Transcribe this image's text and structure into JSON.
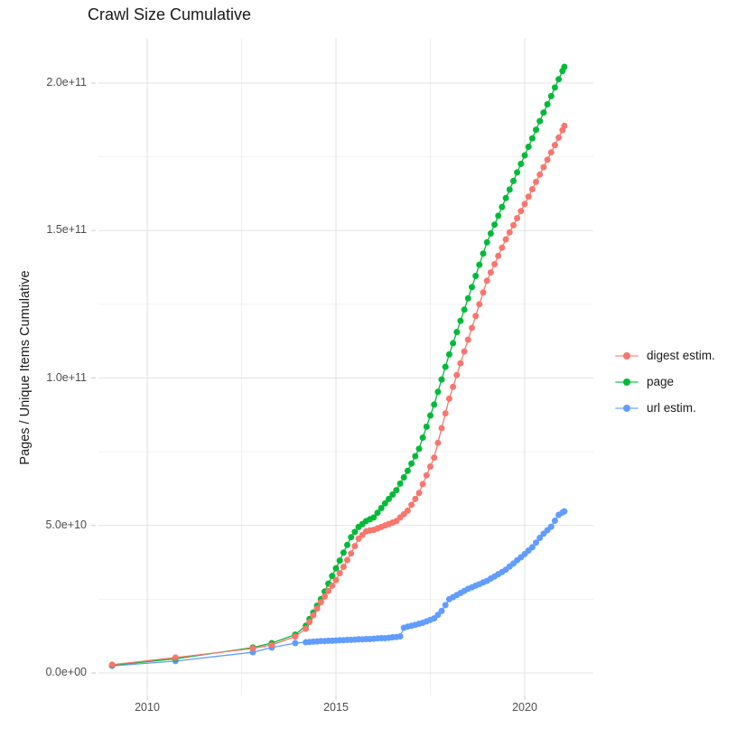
{
  "title": "Crawl Size Cumulative",
  "y_axis": {
    "label": "Pages / Unique Items Cumulative",
    "tick_labels": [
      "0.0e+00",
      "5.0e+10",
      "1.0e+11",
      "1.5e+11",
      "2.0e+11"
    ],
    "tick_values_e9": [
      0,
      50,
      100,
      150,
      200
    ],
    "minor_values_e9": [
      25,
      75,
      125,
      175
    ]
  },
  "x_axis": {
    "tick_labels": [
      "2010",
      "2015",
      "2020"
    ],
    "tick_values": [
      2010,
      2015,
      2020
    ],
    "minor_values": [
      2012.5,
      2017.5
    ]
  },
  "legend": {
    "items": [
      {
        "label": "digest estim.",
        "color": "#F8766D"
      },
      {
        "label": "page",
        "color": "#00BA38"
      },
      {
        "label": "url estim.",
        "color": "#619CFF"
      }
    ]
  },
  "colors": {
    "grid_major": "#e3e3e3",
    "grid_minor": "#ededed",
    "tick": "#d5d5d5",
    "axis_text": "#4d4d4d",
    "title_text": "#1a1a1a"
  },
  "chart_data": {
    "type": "scatter",
    "title": "Crawl Size Cumulative",
    "xlabel": "",
    "ylabel": "Pages / Unique Items Cumulative",
    "value_unit": "1e9 (billions of pages / unique items)",
    "x_range": [
      2008.8,
      2021.3
    ],
    "y_range_e9": [
      0,
      215
    ],
    "grid": true,
    "legend_position": "right",
    "series": [
      {
        "name": "digest estim.",
        "color": "#F8766D",
        "points": [
          [
            2009.07,
            2.8
          ],
          [
            2010.75,
            5.2
          ],
          [
            2012.8,
            8.3
          ],
          [
            2013.3,
            9.5
          ],
          [
            2013.92,
            12.3
          ],
          [
            2014.2,
            15
          ],
          [
            2014.3,
            17.3
          ],
          [
            2014.4,
            19.5
          ],
          [
            2014.5,
            21.8
          ],
          [
            2014.6,
            24
          ],
          [
            2014.7,
            25.9
          ],
          [
            2014.8,
            27.8
          ],
          [
            2014.9,
            29.6
          ],
          [
            2015.0,
            31.5
          ],
          [
            2015.1,
            33.8
          ],
          [
            2015.2,
            36
          ],
          [
            2015.3,
            38.3
          ],
          [
            2015.4,
            40.5
          ],
          [
            2015.5,
            43
          ],
          [
            2015.6,
            45.5
          ],
          [
            2015.7,
            46.8
          ],
          [
            2015.8,
            48
          ],
          [
            2015.9,
            48.3
          ],
          [
            2016.0,
            48.5
          ],
          [
            2016.1,
            49
          ],
          [
            2016.2,
            49.5
          ],
          [
            2016.3,
            50
          ],
          [
            2016.4,
            50.5
          ],
          [
            2016.5,
            51
          ],
          [
            2016.6,
            51.5
          ],
          [
            2016.7,
            52.7
          ],
          [
            2016.8,
            53.8
          ],
          [
            2016.9,
            55
          ],
          [
            2017.0,
            57
          ],
          [
            2017.1,
            59
          ],
          [
            2017.2,
            61
          ],
          [
            2017.3,
            64
          ],
          [
            2017.4,
            67
          ],
          [
            2017.5,
            70
          ],
          [
            2017.6,
            73
          ],
          [
            2017.7,
            78
          ],
          [
            2017.8,
            83
          ],
          [
            2017.9,
            88
          ],
          [
            2018.0,
            93
          ],
          [
            2018.1,
            97
          ],
          [
            2018.2,
            101
          ],
          [
            2018.3,
            105
          ],
          [
            2018.4,
            109
          ],
          [
            2018.5,
            113
          ],
          [
            2018.6,
            117
          ],
          [
            2018.7,
            121
          ],
          [
            2018.8,
            125
          ],
          [
            2018.9,
            129
          ],
          [
            2019.0,
            133
          ],
          [
            2019.1,
            135.8
          ],
          [
            2019.2,
            138.6
          ],
          [
            2019.3,
            141.4
          ],
          [
            2019.4,
            144.2
          ],
          [
            2019.5,
            147
          ],
          [
            2019.6,
            149.4
          ],
          [
            2019.7,
            151.8
          ],
          [
            2019.8,
            154.2
          ],
          [
            2019.9,
            156.6
          ],
          [
            2020.0,
            159
          ],
          [
            2020.1,
            161.5
          ],
          [
            2020.2,
            164
          ],
          [
            2020.3,
            166.5
          ],
          [
            2020.4,
            169
          ],
          [
            2020.5,
            171.5
          ],
          [
            2020.6,
            174
          ],
          [
            2020.7,
            176.5
          ],
          [
            2020.8,
            179
          ],
          [
            2020.9,
            181.5
          ],
          [
            2021.0,
            184
          ],
          [
            2021.05,
            185.5
          ]
        ]
      },
      {
        "name": "page",
        "color": "#00BA38",
        "points": [
          [
            2009.07,
            2.6
          ],
          [
            2010.75,
            4.8
          ],
          [
            2012.8,
            8.6
          ],
          [
            2013.3,
            10.1
          ],
          [
            2013.92,
            13
          ],
          [
            2014.2,
            16
          ],
          [
            2014.3,
            18.3
          ],
          [
            2014.4,
            20.5
          ],
          [
            2014.5,
            22.8
          ],
          [
            2014.6,
            25
          ],
          [
            2014.7,
            27.6
          ],
          [
            2014.8,
            30.3
          ],
          [
            2014.9,
            32.9
          ],
          [
            2015.0,
            35.5
          ],
          [
            2015.1,
            38.1
          ],
          [
            2015.2,
            40.8
          ],
          [
            2015.3,
            43.4
          ],
          [
            2015.4,
            46
          ],
          [
            2015.5,
            47.8
          ],
          [
            2015.6,
            49.5
          ],
          [
            2015.7,
            50.5
          ],
          [
            2015.8,
            51.5
          ],
          [
            2015.9,
            52.1
          ],
          [
            2016.0,
            52.7
          ],
          [
            2016.1,
            54.3
          ],
          [
            2016.2,
            55.9
          ],
          [
            2016.3,
            57.5
          ],
          [
            2016.4,
            59
          ],
          [
            2016.5,
            60.5
          ],
          [
            2016.6,
            62
          ],
          [
            2016.7,
            64.2
          ],
          [
            2016.8,
            66.3
          ],
          [
            2016.9,
            68.5
          ],
          [
            2017.0,
            71
          ],
          [
            2017.1,
            73.5
          ],
          [
            2017.2,
            76
          ],
          [
            2017.3,
            79.8
          ],
          [
            2017.4,
            83.5
          ],
          [
            2017.5,
            87.3
          ],
          [
            2017.6,
            91
          ],
          [
            2017.7,
            95.3
          ],
          [
            2017.8,
            99.5
          ],
          [
            2017.9,
            103.8
          ],
          [
            2018.0,
            108
          ],
          [
            2018.1,
            111.8
          ],
          [
            2018.2,
            115.6
          ],
          [
            2018.3,
            119.4
          ],
          [
            2018.4,
            123.2
          ],
          [
            2018.5,
            127
          ],
          [
            2018.6,
            130.8
          ],
          [
            2018.7,
            134.6
          ],
          [
            2018.8,
            138.4
          ],
          [
            2018.9,
            142.2
          ],
          [
            2019.0,
            146
          ],
          [
            2019.1,
            149
          ],
          [
            2019.2,
            152
          ],
          [
            2019.3,
            155
          ],
          [
            2019.4,
            158
          ],
          [
            2019.5,
            161
          ],
          [
            2019.6,
            163.9
          ],
          [
            2019.7,
            166.8
          ],
          [
            2019.8,
            169.7
          ],
          [
            2019.9,
            172.6
          ],
          [
            2020.0,
            175.5
          ],
          [
            2020.1,
            178.4
          ],
          [
            2020.2,
            181.3
          ],
          [
            2020.3,
            184.2
          ],
          [
            2020.4,
            187.1
          ],
          [
            2020.5,
            190
          ],
          [
            2020.6,
            192.8
          ],
          [
            2020.7,
            195.6
          ],
          [
            2020.8,
            198.5
          ],
          [
            2020.9,
            201.3
          ],
          [
            2021.0,
            204.1
          ],
          [
            2021.05,
            205.5
          ]
        ]
      },
      {
        "name": "url estim.",
        "color": "#619CFF",
        "points": [
          [
            2009.07,
            2.4
          ],
          [
            2010.75,
            4
          ],
          [
            2012.8,
            7
          ],
          [
            2013.3,
            8.6
          ],
          [
            2013.92,
            10.1
          ],
          [
            2014.2,
            10.4
          ],
          [
            2014.3,
            10.5
          ],
          [
            2014.4,
            10.6
          ],
          [
            2014.5,
            10.7
          ],
          [
            2014.6,
            10.8
          ],
          [
            2014.7,
            10.8
          ],
          [
            2014.8,
            10.9
          ],
          [
            2014.9,
            10.9
          ],
          [
            2015.0,
            11
          ],
          [
            2015.1,
            11.1
          ],
          [
            2015.2,
            11.1
          ],
          [
            2015.3,
            11.2
          ],
          [
            2015.4,
            11.2
          ],
          [
            2015.5,
            11.3
          ],
          [
            2015.6,
            11.4
          ],
          [
            2015.7,
            11.4
          ],
          [
            2015.8,
            11.5
          ],
          [
            2015.9,
            11.5
          ],
          [
            2016.0,
            11.6
          ],
          [
            2016.1,
            11.7
          ],
          [
            2016.2,
            11.8
          ],
          [
            2016.3,
            11.8
          ],
          [
            2016.4,
            11.9
          ],
          [
            2016.5,
            12.1
          ],
          [
            2016.6,
            12.2
          ],
          [
            2016.7,
            12.4
          ],
          [
            2016.8,
            15.3
          ],
          [
            2016.9,
            15.7
          ],
          [
            2017.0,
            16
          ],
          [
            2017.1,
            16.3
          ],
          [
            2017.2,
            16.7
          ],
          [
            2017.3,
            17
          ],
          [
            2017.4,
            17.5
          ],
          [
            2017.5,
            18
          ],
          [
            2017.6,
            18.5
          ],
          [
            2017.7,
            19.7
          ],
          [
            2017.8,
            21
          ],
          [
            2017.9,
            23
          ],
          [
            2018.0,
            25
          ],
          [
            2018.1,
            25.7
          ],
          [
            2018.2,
            26.4
          ],
          [
            2018.3,
            27.1
          ],
          [
            2018.4,
            27.8
          ],
          [
            2018.5,
            28.5
          ],
          [
            2018.6,
            29
          ],
          [
            2018.7,
            29.6
          ],
          [
            2018.8,
            30.1
          ],
          [
            2018.9,
            30.7
          ],
          [
            2019.0,
            31.2
          ],
          [
            2019.1,
            32
          ],
          [
            2019.2,
            32.7
          ],
          [
            2019.3,
            33.5
          ],
          [
            2019.4,
            34.2
          ],
          [
            2019.5,
            35
          ],
          [
            2019.6,
            36.1
          ],
          [
            2019.7,
            37.1
          ],
          [
            2019.8,
            38.2
          ],
          [
            2019.9,
            39.2
          ],
          [
            2020.0,
            40.3
          ],
          [
            2020.1,
            41.5
          ],
          [
            2020.2,
            42.6
          ],
          [
            2020.3,
            44.2
          ],
          [
            2020.4,
            45.8
          ],
          [
            2020.5,
            47.2
          ],
          [
            2020.6,
            48.4
          ],
          [
            2020.7,
            49.6
          ],
          [
            2020.8,
            51.6
          ],
          [
            2020.9,
            53.6
          ],
          [
            2021.0,
            54.4
          ],
          [
            2021.05,
            54.8
          ]
        ]
      }
    ]
  }
}
